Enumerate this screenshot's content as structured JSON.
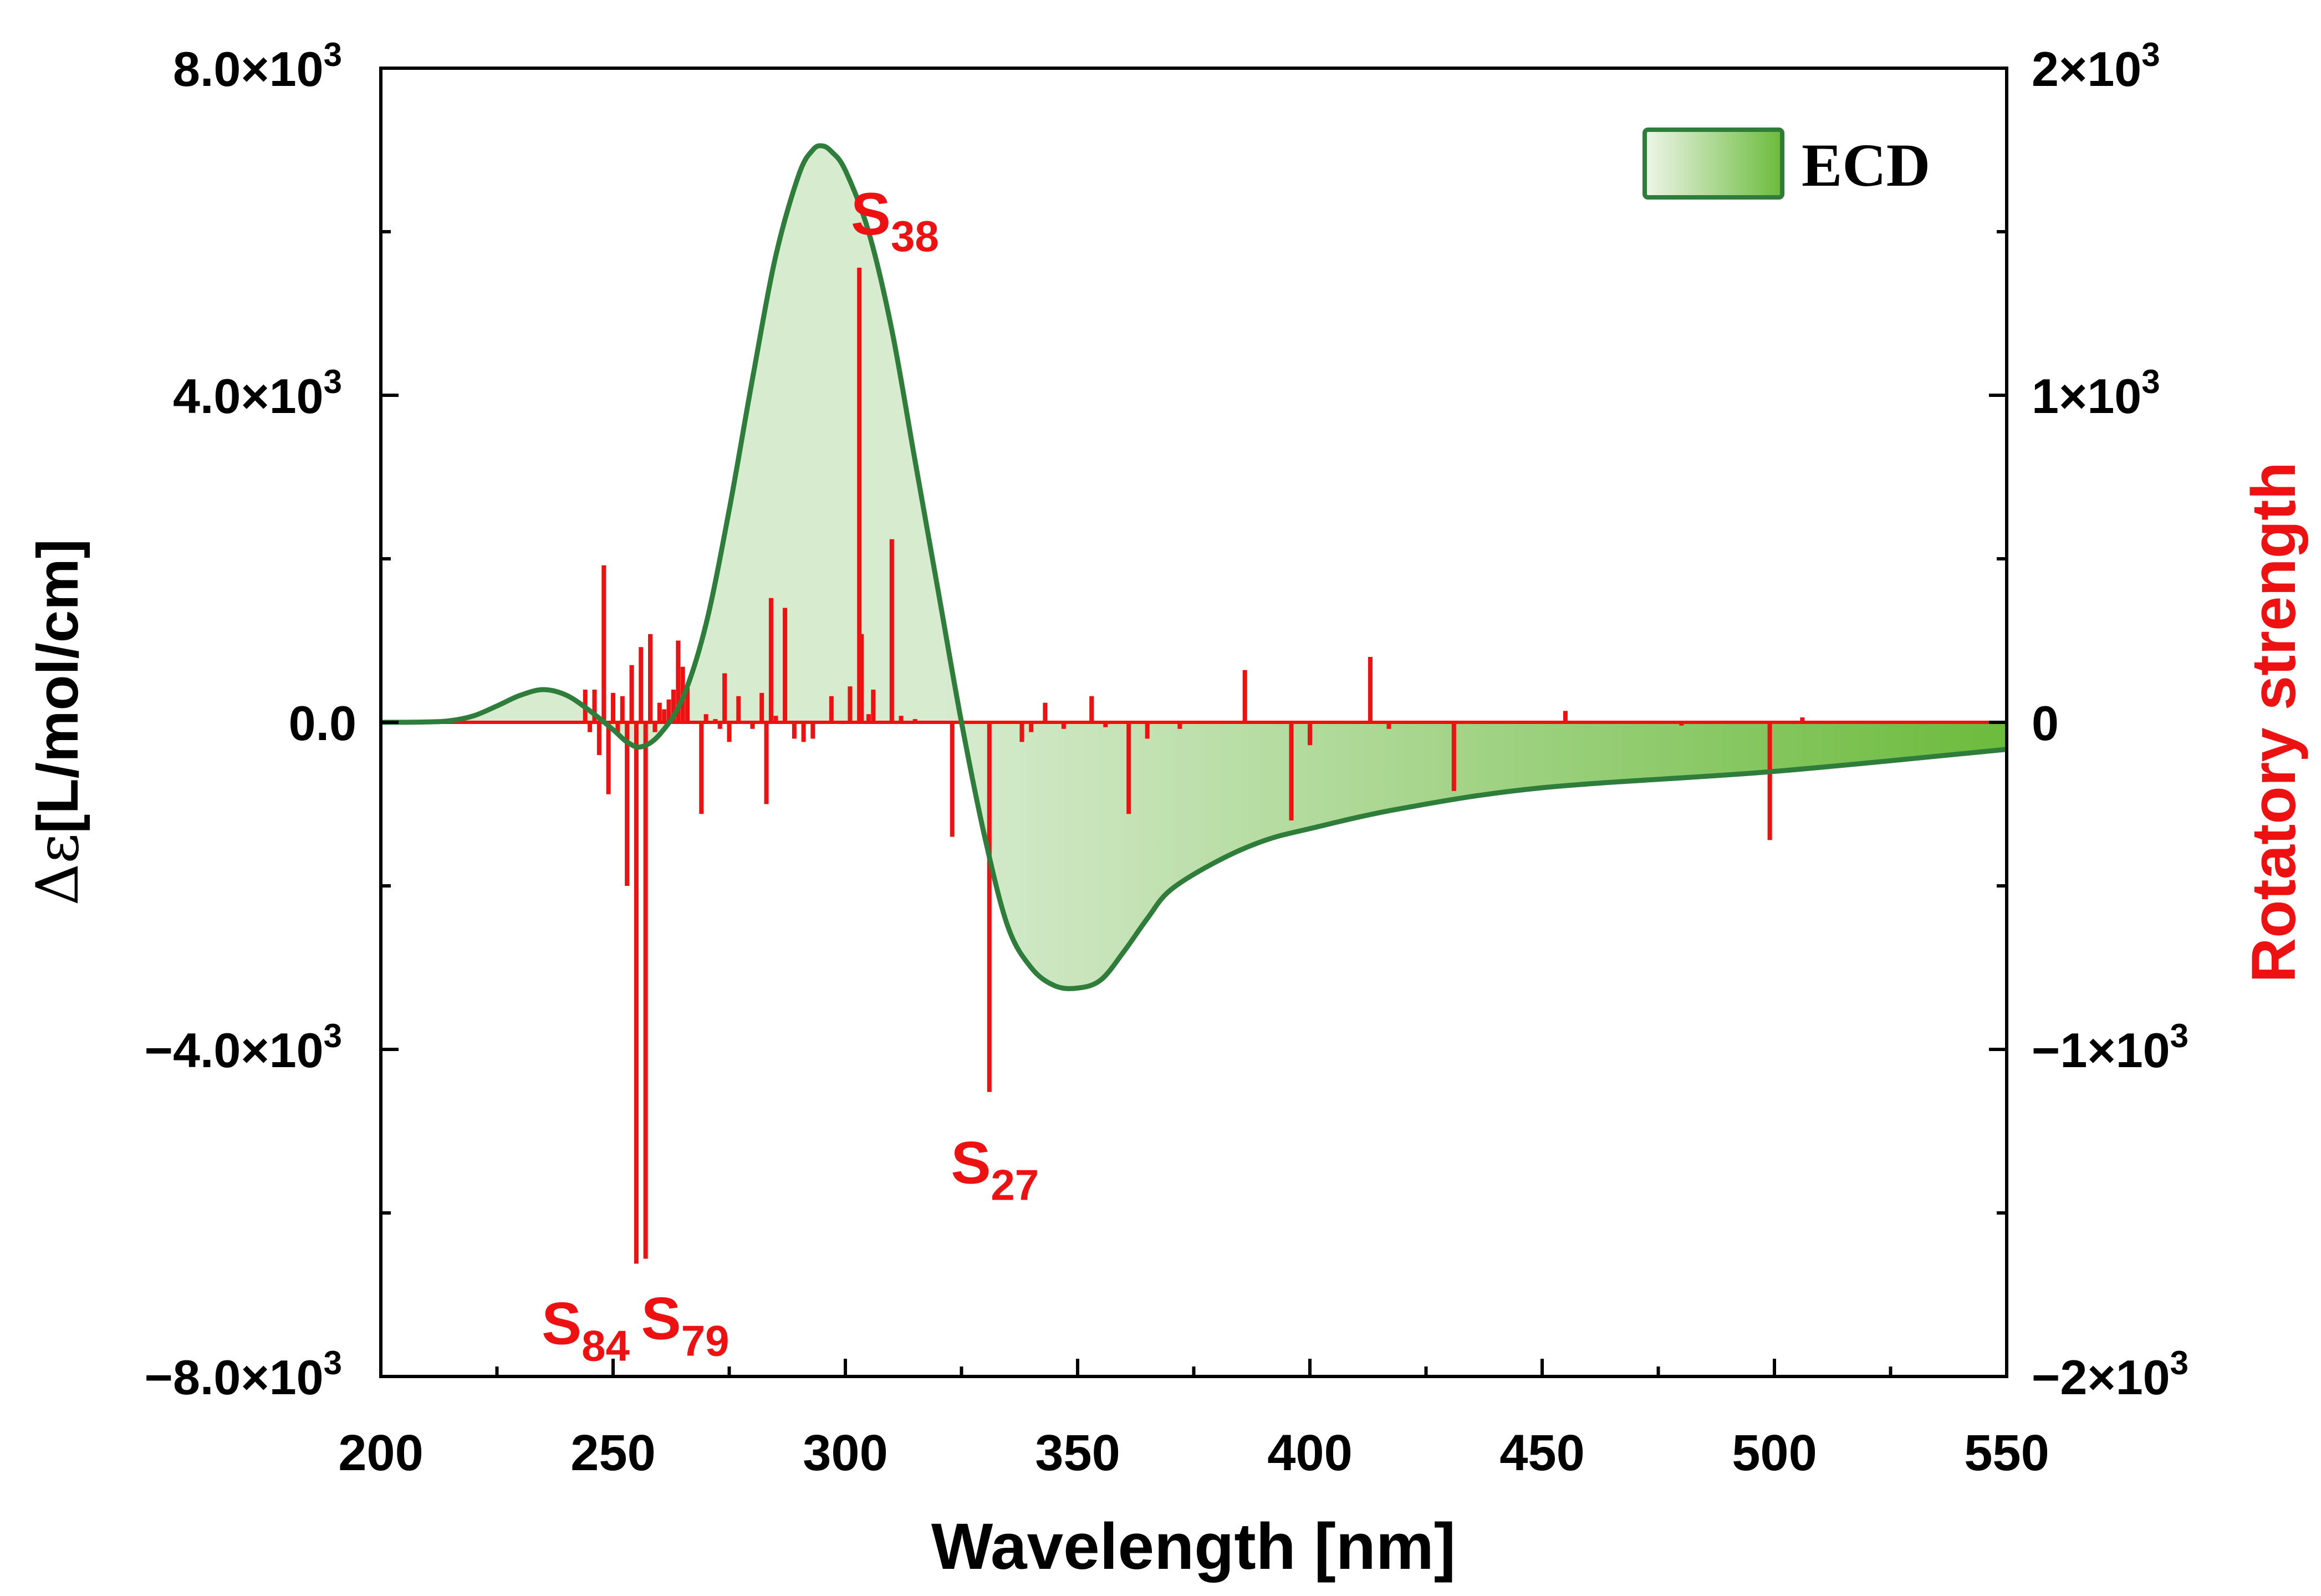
{
  "chart_data": {
    "type": "line",
    "x_axis": {
      "label": "Wavelength [nm]",
      "range": [
        200,
        550
      ],
      "ticks": [
        200,
        250,
        300,
        350,
        400,
        450,
        500,
        550
      ],
      "tick_labels": [
        "200",
        "250",
        "300",
        "350",
        "400",
        "450",
        "500",
        "550"
      ]
    },
    "y_axis_left": {
      "label_prefix": "Δε",
      "label_main": "[L/mol/cm]",
      "range": [
        -8000,
        8000
      ],
      "ticks": [
        -8000,
        -4000,
        0,
        4000,
        8000
      ],
      "tick_mantissa": [
        "−8.0×10",
        "−4.0×10",
        "0.0",
        "4.0×10",
        "8.0×10"
      ],
      "tick_exponent": [
        "3",
        "3",
        "",
        "3",
        "3"
      ]
    },
    "y_axis_right": {
      "label": "Rotatory strength",
      "range": [
        -2000,
        2000
      ],
      "ticks": [
        -2000,
        -1000,
        0,
        1000,
        2000
      ],
      "tick_mantissa": [
        "−2×10",
        "−1×10",
        "0",
        "1×10",
        "2×10"
      ],
      "tick_exponent": [
        "3",
        "3",
        "",
        "3",
        "3"
      ]
    },
    "series": [
      {
        "name": "ECD",
        "kind": "filled-curve",
        "axis": "left",
        "color": "#2e7d3a",
        "fill_light": "#d7ebcf",
        "fill_dark": "#6cbb3c",
        "x": [
          200,
          210,
          215,
          220,
          225,
          230,
          235,
          240,
          245,
          250,
          253,
          256,
          260,
          265,
          270,
          275,
          280,
          285,
          290,
          293,
          295,
          297,
          300,
          305,
          310,
          315,
          320,
          325,
          330,
          335,
          340,
          345,
          350,
          355,
          360,
          365,
          370,
          380,
          390,
          400,
          420,
          450,
          500,
          550
        ],
        "y": [
          0,
          5,
          20,
          80,
          200,
          330,
          400,
          330,
          140,
          -90,
          -240,
          -300,
          -150,
          300,
          1200,
          2600,
          4200,
          5700,
          6700,
          7000,
          7050,
          6980,
          6750,
          6000,
          4800,
          3200,
          1600,
          0,
          -1400,
          -2500,
          -3000,
          -3220,
          -3250,
          -3150,
          -2800,
          -2400,
          -2050,
          -1700,
          -1450,
          -1300,
          -1050,
          -800,
          -600,
          -330
        ]
      },
      {
        "name": "Rotatory strength",
        "kind": "stick",
        "axis": "right",
        "color": "#ee1111",
        "x": [
          244,
          245,
          246,
          247,
          248,
          249,
          250,
          251,
          252,
          253,
          254,
          255,
          256,
          257,
          258,
          259,
          260,
          261,
          262,
          263,
          264,
          265,
          266,
          269,
          270,
          272,
          273,
          274,
          275,
          277,
          280,
          282,
          283,
          284,
          285,
          287,
          289,
          291,
          293,
          297,
          301,
          303,
          303.5,
          305,
          306,
          310,
          312,
          315,
          323,
          331,
          338,
          340,
          343,
          347,
          353,
          356,
          361,
          365,
          372,
          386,
          396,
          400,
          413,
          417,
          431,
          455,
          480,
          499,
          506,
          520,
          540
        ],
        "y": [
          100,
          -30,
          100,
          -100,
          480,
          -220,
          90,
          -40,
          80,
          -500,
          175,
          -1655,
          230,
          -1640,
          270,
          -30,
          60,
          40,
          70,
          100,
          250,
          170,
          110,
          -280,
          25,
          10,
          -20,
          150,
          -60,
          80,
          -20,
          90,
          -250,
          380,
          20,
          350,
          -50,
          -60,
          -50,
          80,
          110,
          1390,
          270,
          25,
          100,
          560,
          20,
          10,
          -350,
          -1130,
          -60,
          -30,
          60,
          -20,
          80,
          -15,
          -280,
          -50,
          -20,
          160,
          -300,
          -70,
          200,
          -20,
          -210,
          35,
          -10,
          -360,
          15,
          -5,
          -5
        ]
      }
    ],
    "annotations": [
      {
        "base": "S",
        "sub": "38",
        "x": 303.5,
        "rs": 1390
      },
      {
        "base": "S",
        "sub": "27",
        "x": 331,
        "rs": -1130
      },
      {
        "base": "S",
        "sub": "84",
        "x": 255,
        "rs": -1655
      },
      {
        "base": "S",
        "sub": "79",
        "x": 257,
        "rs": -1640
      }
    ],
    "legend": {
      "label": "ECD",
      "position": "top-right"
    }
  }
}
